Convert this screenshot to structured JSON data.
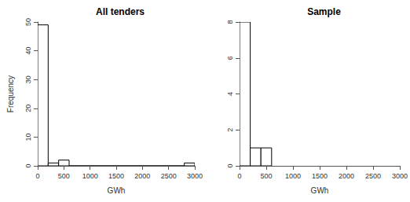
{
  "chart_data": [
    {
      "type": "histogram",
      "title": "All tenders",
      "x_label": "GWh",
      "y_label": "Frequency",
      "bins": [
        0,
        200,
        400,
        600,
        800,
        1000,
        1200,
        1400,
        1600,
        1800,
        2000,
        2200,
        2400,
        2600,
        2800,
        3000
      ],
      "counts": [
        49,
        1,
        2,
        0,
        0,
        0,
        0,
        0,
        0,
        0,
        0,
        0,
        0,
        0,
        1
      ],
      "color": "#ffffff",
      "xlim": [
        0,
        3000
      ],
      "xticks": [
        0,
        500,
        1000,
        1500,
        2000,
        2500,
        3000
      ],
      "ylim": [
        0,
        50
      ],
      "yticks": [
        0,
        10,
        20,
        30,
        40,
        50
      ],
      "grid": false
    },
    {
      "type": "histogram",
      "title": "Sample",
      "x_label": "GWh",
      "bins": [
        0,
        200,
        400,
        600
      ],
      "counts": [
        8,
        1,
        1
      ],
      "color": "#ffffff",
      "xlim": [
        0,
        3000
      ],
      "xticks": [
        0,
        500,
        1000,
        1500,
        2000,
        2500,
        3000
      ],
      "ylim": [
        0,
        8
      ],
      "yticks": [
        0,
        2,
        4,
        6,
        8
      ],
      "grid": false
    }
  ]
}
